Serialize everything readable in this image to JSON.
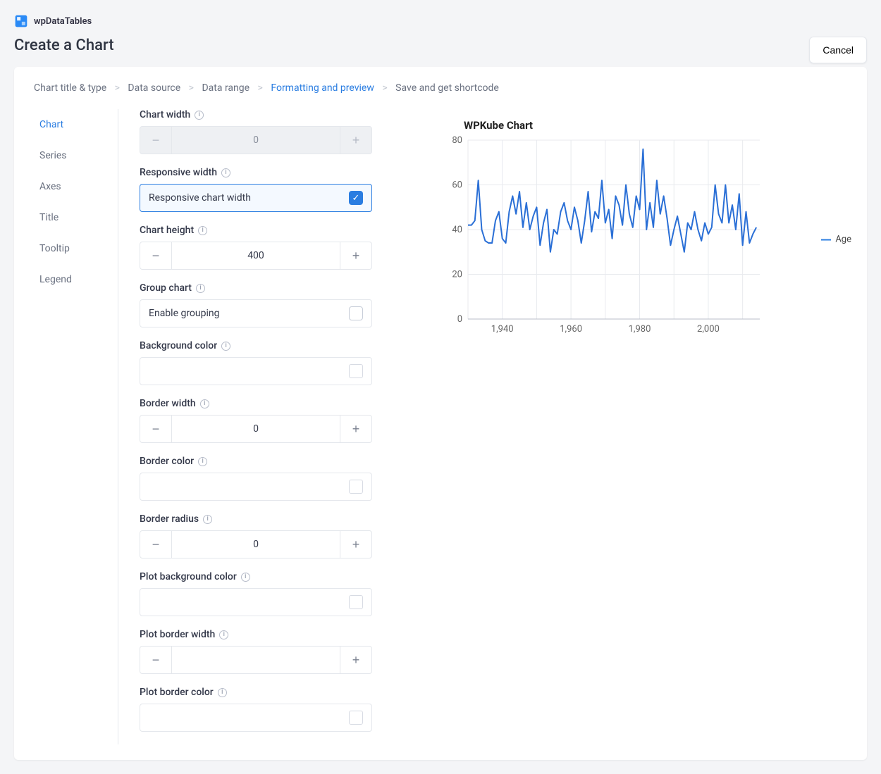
{
  "brand": "wpDataTables",
  "page_title": "Create a Chart",
  "cancel": "Cancel",
  "crumbs": {
    "step1": "Chart title & type",
    "step2": "Data source",
    "step3": "Data range",
    "step4": "Formatting and preview",
    "step5": "Save and get shortcode",
    "active_index": 3
  },
  "tabs": [
    "Chart",
    "Series",
    "Axes",
    "Title",
    "Tooltip",
    "Legend"
  ],
  "active_tab": 0,
  "fields": {
    "chart_width": {
      "label": "Chart width",
      "value": "0",
      "disabled": true
    },
    "responsive_width": {
      "label": "Responsive width",
      "option_label": "Responsive chart width",
      "checked": true
    },
    "chart_height": {
      "label": "Chart height",
      "value": "400"
    },
    "group_chart": {
      "label": "Group chart",
      "option_label": "Enable grouping",
      "checked": false
    },
    "background_color": {
      "label": "Background color",
      "value": ""
    },
    "border_width": {
      "label": "Border width",
      "value": "0"
    },
    "border_color": {
      "label": "Border color",
      "value": ""
    },
    "border_radius": {
      "label": "Border radius",
      "value": "0"
    },
    "plot_background_color": {
      "label": "Plot background color",
      "value": ""
    },
    "plot_border_width": {
      "label": "Plot border width",
      "value": ""
    },
    "plot_border_color": {
      "label": "Plot border color",
      "value": ""
    }
  },
  "chart": {
    "type": "line",
    "title": "WPKube Chart",
    "series_name": "Age",
    "series_color": "#2a6fd6",
    "line_width": 2,
    "background_color": "#ffffff",
    "grid_color": "#e8eaee",
    "axis_color": "#b8bec9",
    "tick_font_size": 13,
    "tick_color": "#666666",
    "x": {
      "min": 1930,
      "max": 2015,
      "tick_start": 1940,
      "tick_step": 20
    },
    "y": {
      "min": 0,
      "max": 80,
      "tick_step": 20
    },
    "data": [
      [
        1930,
        42
      ],
      [
        1931,
        42
      ],
      [
        1932,
        44
      ],
      [
        1933,
        62
      ],
      [
        1934,
        40
      ],
      [
        1935,
        35
      ],
      [
        1936,
        34
      ],
      [
        1937,
        34
      ],
      [
        1938,
        44
      ],
      [
        1939,
        48
      ],
      [
        1940,
        36
      ],
      [
        1941,
        34
      ],
      [
        1942,
        48
      ],
      [
        1943,
        55
      ],
      [
        1944,
        47
      ],
      [
        1945,
        57
      ],
      [
        1946,
        41
      ],
      [
        1947,
        52
      ],
      [
        1948,
        40
      ],
      [
        1949,
        46
      ],
      [
        1950,
        50
      ],
      [
        1951,
        33
      ],
      [
        1952,
        43
      ],
      [
        1953,
        49
      ],
      [
        1954,
        30
      ],
      [
        1955,
        40
      ],
      [
        1956,
        38
      ],
      [
        1957,
        48
      ],
      [
        1958,
        52
      ],
      [
        1959,
        44
      ],
      [
        1960,
        40
      ],
      [
        1961,
        50
      ],
      [
        1962,
        44
      ],
      [
        1963,
        34
      ],
      [
        1964,
        44
      ],
      [
        1965,
        57
      ],
      [
        1966,
        39
      ],
      [
        1967,
        48
      ],
      [
        1968,
        45
      ],
      [
        1969,
        62
      ],
      [
        1970,
        43
      ],
      [
        1971,
        49
      ],
      [
        1972,
        36
      ],
      [
        1973,
        55
      ],
      [
        1974,
        51
      ],
      [
        1975,
        42
      ],
      [
        1976,
        60
      ],
      [
        1977,
        47
      ],
      [
        1978,
        41
      ],
      [
        1979,
        55
      ],
      [
        1980,
        49
      ],
      [
        1981,
        76
      ],
      [
        1982,
        40
      ],
      [
        1983,
        52
      ],
      [
        1984,
        41
      ],
      [
        1985,
        62
      ],
      [
        1986,
        47
      ],
      [
        1987,
        55
      ],
      [
        1988,
        45
      ],
      [
        1989,
        33
      ],
      [
        1990,
        40
      ],
      [
        1991,
        46
      ],
      [
        1992,
        38
      ],
      [
        1993,
        30
      ],
      [
        1994,
        43
      ],
      [
        1995,
        40
      ],
      [
        1996,
        48
      ],
      [
        1997,
        40
      ],
      [
        1998,
        35
      ],
      [
        1999,
        43
      ],
      [
        2000,
        38
      ],
      [
        2001,
        41
      ],
      [
        2002,
        60
      ],
      [
        2003,
        47
      ],
      [
        2004,
        43
      ],
      [
        2005,
        60
      ],
      [
        2006,
        43
      ],
      [
        2007,
        51
      ],
      [
        2008,
        40
      ],
      [
        2009,
        56
      ],
      [
        2010,
        33
      ],
      [
        2011,
        48
      ],
      [
        2012,
        34
      ],
      [
        2013,
        38
      ],
      [
        2014,
        41
      ]
    ]
  }
}
